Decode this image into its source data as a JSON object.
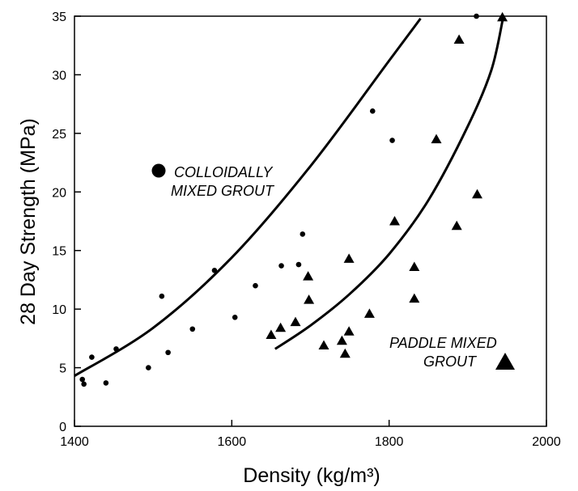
{
  "chart_data": {
    "type": "scatter",
    "xlabel": "Density (kg/m³)",
    "ylabel": "28 Day Strength (MPa)",
    "xlim": [
      1400,
      2000
    ],
    "ylim": [
      0,
      35
    ],
    "xticks": [
      1400,
      1600,
      1800,
      2000
    ],
    "yticks": [
      0,
      5,
      10,
      15,
      20,
      25,
      30,
      35
    ],
    "grid": false,
    "legend_position": "inline",
    "series": [
      {
        "name": "COLLOIDALLY MIXED GROUT",
        "legend_lines": [
          "COLLOIDALLY",
          "MIXED GROUT"
        ],
        "marker": "circle",
        "points": [
          [
            1410,
            4.0
          ],
          [
            1412,
            3.6
          ],
          [
            1422,
            5.9
          ],
          [
            1440,
            3.7
          ],
          [
            1453,
            6.6
          ],
          [
            1494,
            5.0
          ],
          [
            1511,
            11.1
          ],
          [
            1519,
            6.3
          ],
          [
            1550,
            8.3
          ],
          [
            1578,
            13.3
          ],
          [
            1604,
            9.3
          ],
          [
            1630,
            12.0
          ],
          [
            1663,
            13.7
          ],
          [
            1685,
            13.8
          ],
          [
            1690,
            16.4
          ],
          [
            1779,
            26.9
          ],
          [
            1804,
            24.4
          ],
          [
            1911,
            35.0
          ]
        ],
        "fit_curve": [
          [
            1400,
            4.3
          ],
          [
            1500,
            8.4
          ],
          [
            1600,
            14.4
          ],
          [
            1700,
            22.2
          ],
          [
            1800,
            31.2
          ],
          [
            1840,
            34.8
          ]
        ]
      },
      {
        "name": "PADDLE MIXED GROUT",
        "legend_lines": [
          "PADDLE MIXED",
          "GROUT"
        ],
        "marker": "triangle",
        "points": [
          [
            1650,
            7.8
          ],
          [
            1662,
            8.4
          ],
          [
            1681,
            8.9
          ],
          [
            1697,
            12.8
          ],
          [
            1698,
            10.8
          ],
          [
            1717,
            6.9
          ],
          [
            1740,
            7.3
          ],
          [
            1744,
            6.2
          ],
          [
            1749,
            8.1
          ],
          [
            1749,
            14.3
          ],
          [
            1775,
            9.6
          ],
          [
            1807,
            17.5
          ],
          [
            1832,
            13.6
          ],
          [
            1832,
            10.9
          ],
          [
            1860,
            24.5
          ],
          [
            1886,
            17.1
          ],
          [
            1889,
            33.0
          ],
          [
            1912,
            19.8
          ],
          [
            1944,
            34.9
          ]
        ],
        "fit_curve": [
          [
            1655,
            6.6
          ],
          [
            1700,
            8.6
          ],
          [
            1750,
            11.3
          ],
          [
            1800,
            14.7
          ],
          [
            1850,
            19.3
          ],
          [
            1900,
            25.6
          ],
          [
            1930,
            30.4
          ],
          [
            1945,
            34.9
          ]
        ]
      }
    ]
  }
}
